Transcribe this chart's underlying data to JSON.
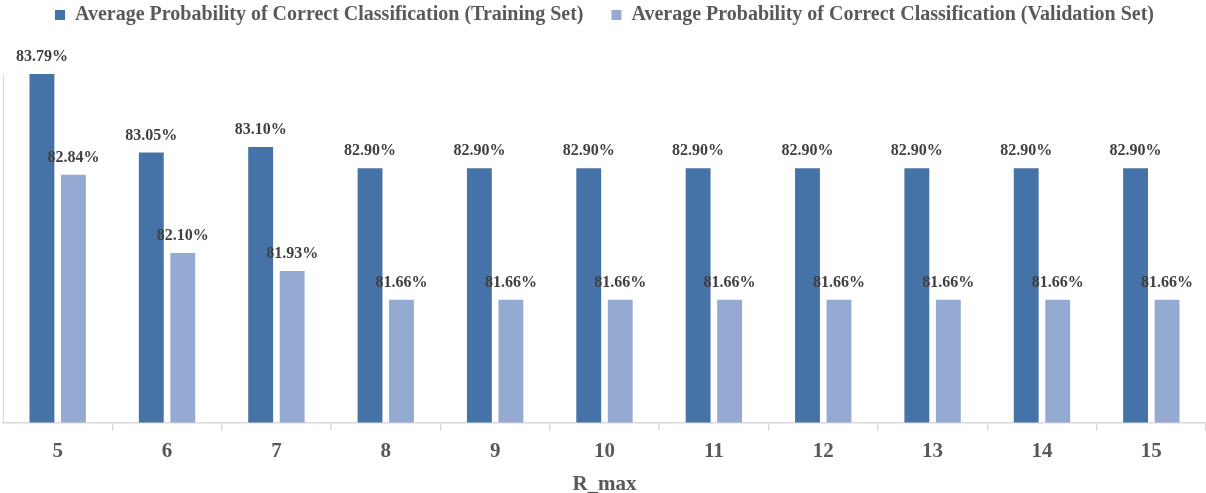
{
  "chart_data": {
    "type": "bar",
    "categories": [
      "5",
      "6",
      "7",
      "8",
      "9",
      "10",
      "11",
      "12",
      "13",
      "14",
      "15"
    ],
    "xlabel": "R_max",
    "series": [
      {
        "name": "Average Probability of Correct Classification (Training Set)",
        "color": "#4673a7",
        "values": [
          83.79,
          83.05,
          83.1,
          82.9,
          82.9,
          82.9,
          82.9,
          82.9,
          82.9,
          82.9,
          82.9
        ],
        "value_labels": [
          "83.79%",
          "83.05%",
          "83.10%",
          "82.90%",
          "82.90%",
          "82.90%",
          "82.90%",
          "82.90%",
          "82.90%",
          "82.90%",
          "82.90%"
        ]
      },
      {
        "name": "Average Probability of Correct Classification (Validation Set)",
        "color": "#95aad3",
        "values": [
          82.84,
          82.1,
          81.93,
          81.66,
          81.66,
          81.66,
          81.66,
          81.66,
          81.66,
          81.66,
          81.66
        ],
        "value_labels": [
          "82.84%",
          "82.10%",
          "81.93%",
          "81.66%",
          "81.66%",
          "81.66%",
          "81.66%",
          "81.66%",
          "81.66%",
          "81.66%",
          "81.66%"
        ]
      }
    ],
    "ylim": [
      80.5,
      83.79
    ],
    "tick_labels": "x",
    "legend": "top",
    "grid": false
  }
}
